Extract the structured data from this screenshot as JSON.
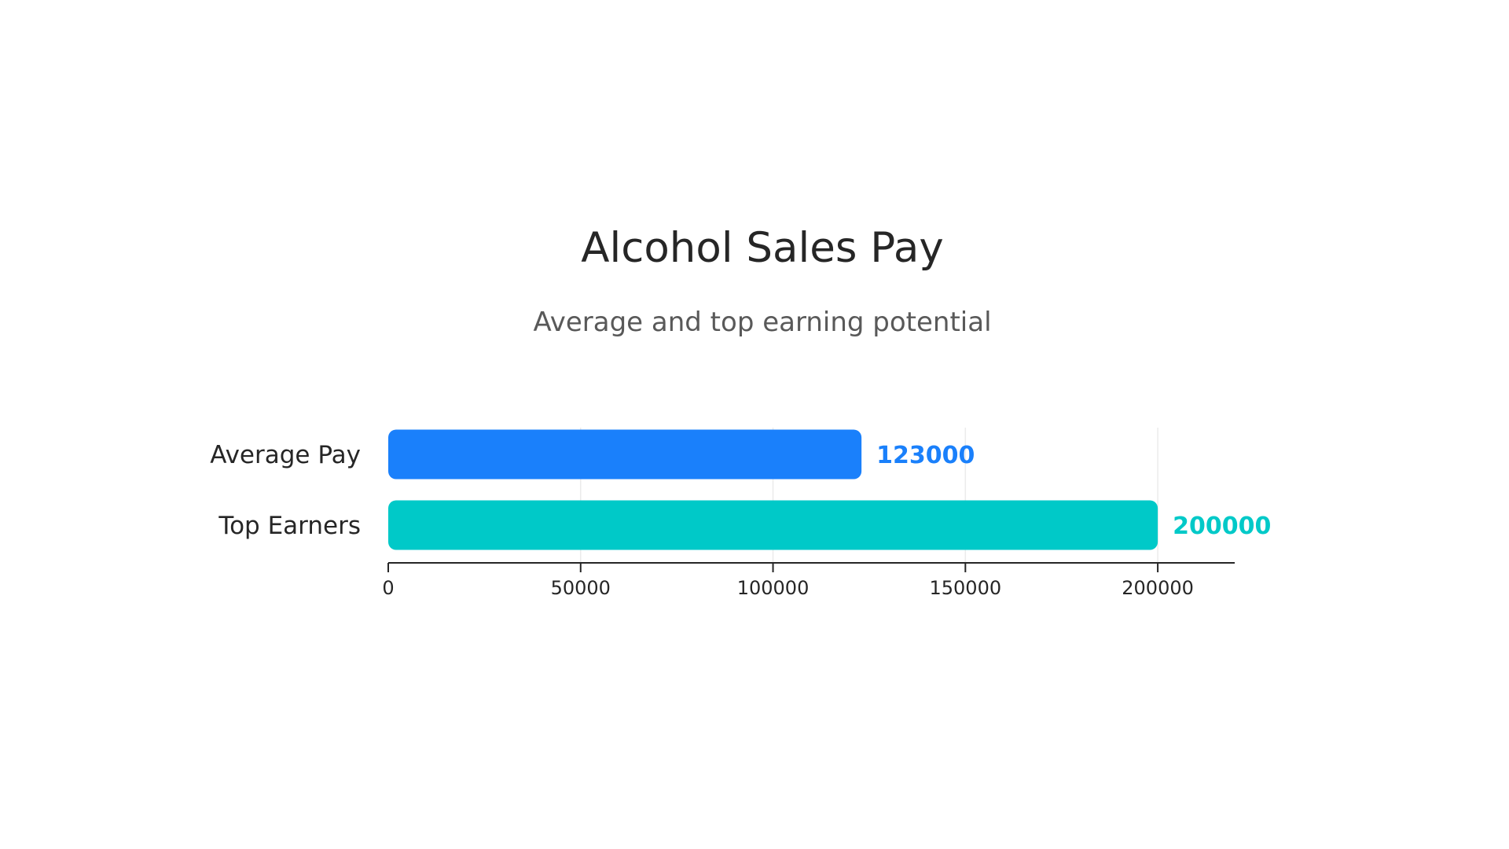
{
  "chart_data": {
    "type": "bar",
    "orientation": "horizontal",
    "title": "Alcohol Sales Pay",
    "subtitle": "Average and top earning potential",
    "categories": [
      "Average Pay",
      "Top Earners"
    ],
    "values": [
      123000,
      200000
    ],
    "value_labels": [
      "123000",
      "200000"
    ],
    "colors": [
      "#1a80fb",
      "#00c9c8"
    ],
    "xlabel": "",
    "ylabel": "",
    "xlim": [
      0,
      220000
    ],
    "xticks": [
      0,
      50000,
      100000,
      150000,
      200000
    ],
    "xtick_labels": [
      "0",
      "50000",
      "100000",
      "150000",
      "200000"
    ],
    "grid": true,
    "legend": "none"
  }
}
